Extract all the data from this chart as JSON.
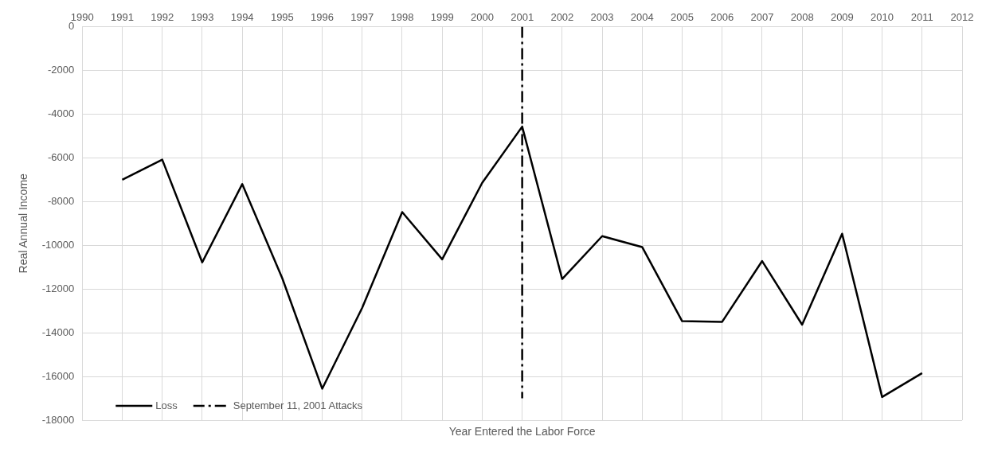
{
  "chart_data": {
    "type": "line",
    "xlabel": "Year Entered the Labor Force",
    "ylabel": "Real Annual Income",
    "xlim": [
      1990,
      2012
    ],
    "xticks": [
      1990,
      1991,
      1992,
      1993,
      1994,
      1995,
      1996,
      1997,
      1998,
      1999,
      2000,
      2001,
      2002,
      2003,
      2004,
      2005,
      2006,
      2007,
      2008,
      2009,
      2010,
      2011,
      2012
    ],
    "ylim": [
      -18000,
      0
    ],
    "yticks": [
      0,
      -2000,
      -4000,
      -6000,
      -8000,
      -10000,
      -12000,
      -14000,
      -16000,
      -18000
    ],
    "grid": true,
    "legend": "bottom left",
    "marker": "none",
    "series": [
      {
        "name": "Loss",
        "color": "#000000",
        "line_style": "solid",
        "x": [
          1991,
          1992,
          1993,
          1994,
          1995,
          1996,
          1997,
          1998,
          1999,
          2000,
          2001,
          2002,
          2003,
          2004,
          2005,
          2006,
          2007,
          2008,
          2009,
          2010,
          2011
        ],
        "values": [
          -7000,
          -6080,
          -10780,
          -7200,
          -11500,
          -16560,
          -12860,
          -8480,
          -10640,
          -7140,
          -4570,
          -11540,
          -9580,
          -10080,
          -13470,
          -13500,
          -10720,
          -13630,
          -9470,
          -16940,
          -15850
        ]
      },
      {
        "name": "September 11, 2001 Attacks",
        "color": "#000000",
        "line_style": "dashed",
        "x": [
          2001,
          2001
        ],
        "values": [
          0,
          -17000
        ]
      }
    ]
  }
}
